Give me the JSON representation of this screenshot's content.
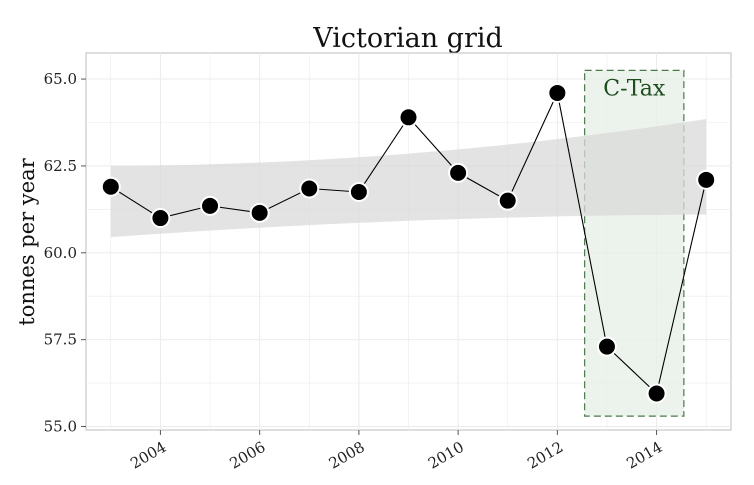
{
  "chart_data": {
    "type": "line",
    "title": "Victorian grid",
    "xlabel": "",
    "ylabel": "tonnes per year",
    "x": [
      2003,
      2004,
      2005,
      2006,
      2007,
      2008,
      2009,
      2010,
      2011,
      2012,
      2013,
      2014,
      2015
    ],
    "series": [
      {
        "values": [
          61.9,
          61.0,
          61.35,
          61.15,
          61.85,
          61.75,
          63.9,
          62.3,
          61.5,
          64.6,
          57.3,
          55.95,
          62.1
        ]
      }
    ],
    "trend_band": {
      "x": [
        2003,
        2015
      ],
      "lower": [
        60.45,
        61.1
      ],
      "upper": [
        62.5,
        63.85
      ]
    },
    "xticks": [
      2004,
      2006,
      2008,
      2010,
      2012,
      2014
    ],
    "xtick_labels": [
      "2004",
      "2006",
      "2008",
      "2010",
      "2012",
      "2014"
    ],
    "yticks": [
      55.0,
      57.5,
      60.0,
      62.5,
      65.0
    ],
    "ytick_labels": [
      "55.0",
      "57.5",
      "60.0",
      "62.5",
      "65.0"
    ],
    "xlim": [
      2002.5,
      2015.5
    ],
    "ylim": [
      54.9,
      65.75
    ],
    "grid": true,
    "annotations": [
      {
        "label": "C-Tax",
        "x_range": [
          2012.55,
          2014.55
        ],
        "y_range": [
          55.3,
          65.25
        ]
      }
    ],
    "colors": {
      "line": "#000000",
      "marker_fill": "#000000",
      "marker_edge": "#ffffff",
      "band": "#d9d9d9",
      "annotation_fill": "#e6efe6",
      "annotation_edge": "#4a7a4a",
      "annotation_text": "#1e4d1e",
      "grid": "#ebebeb",
      "panel_border": "#bdbdbd"
    }
  }
}
